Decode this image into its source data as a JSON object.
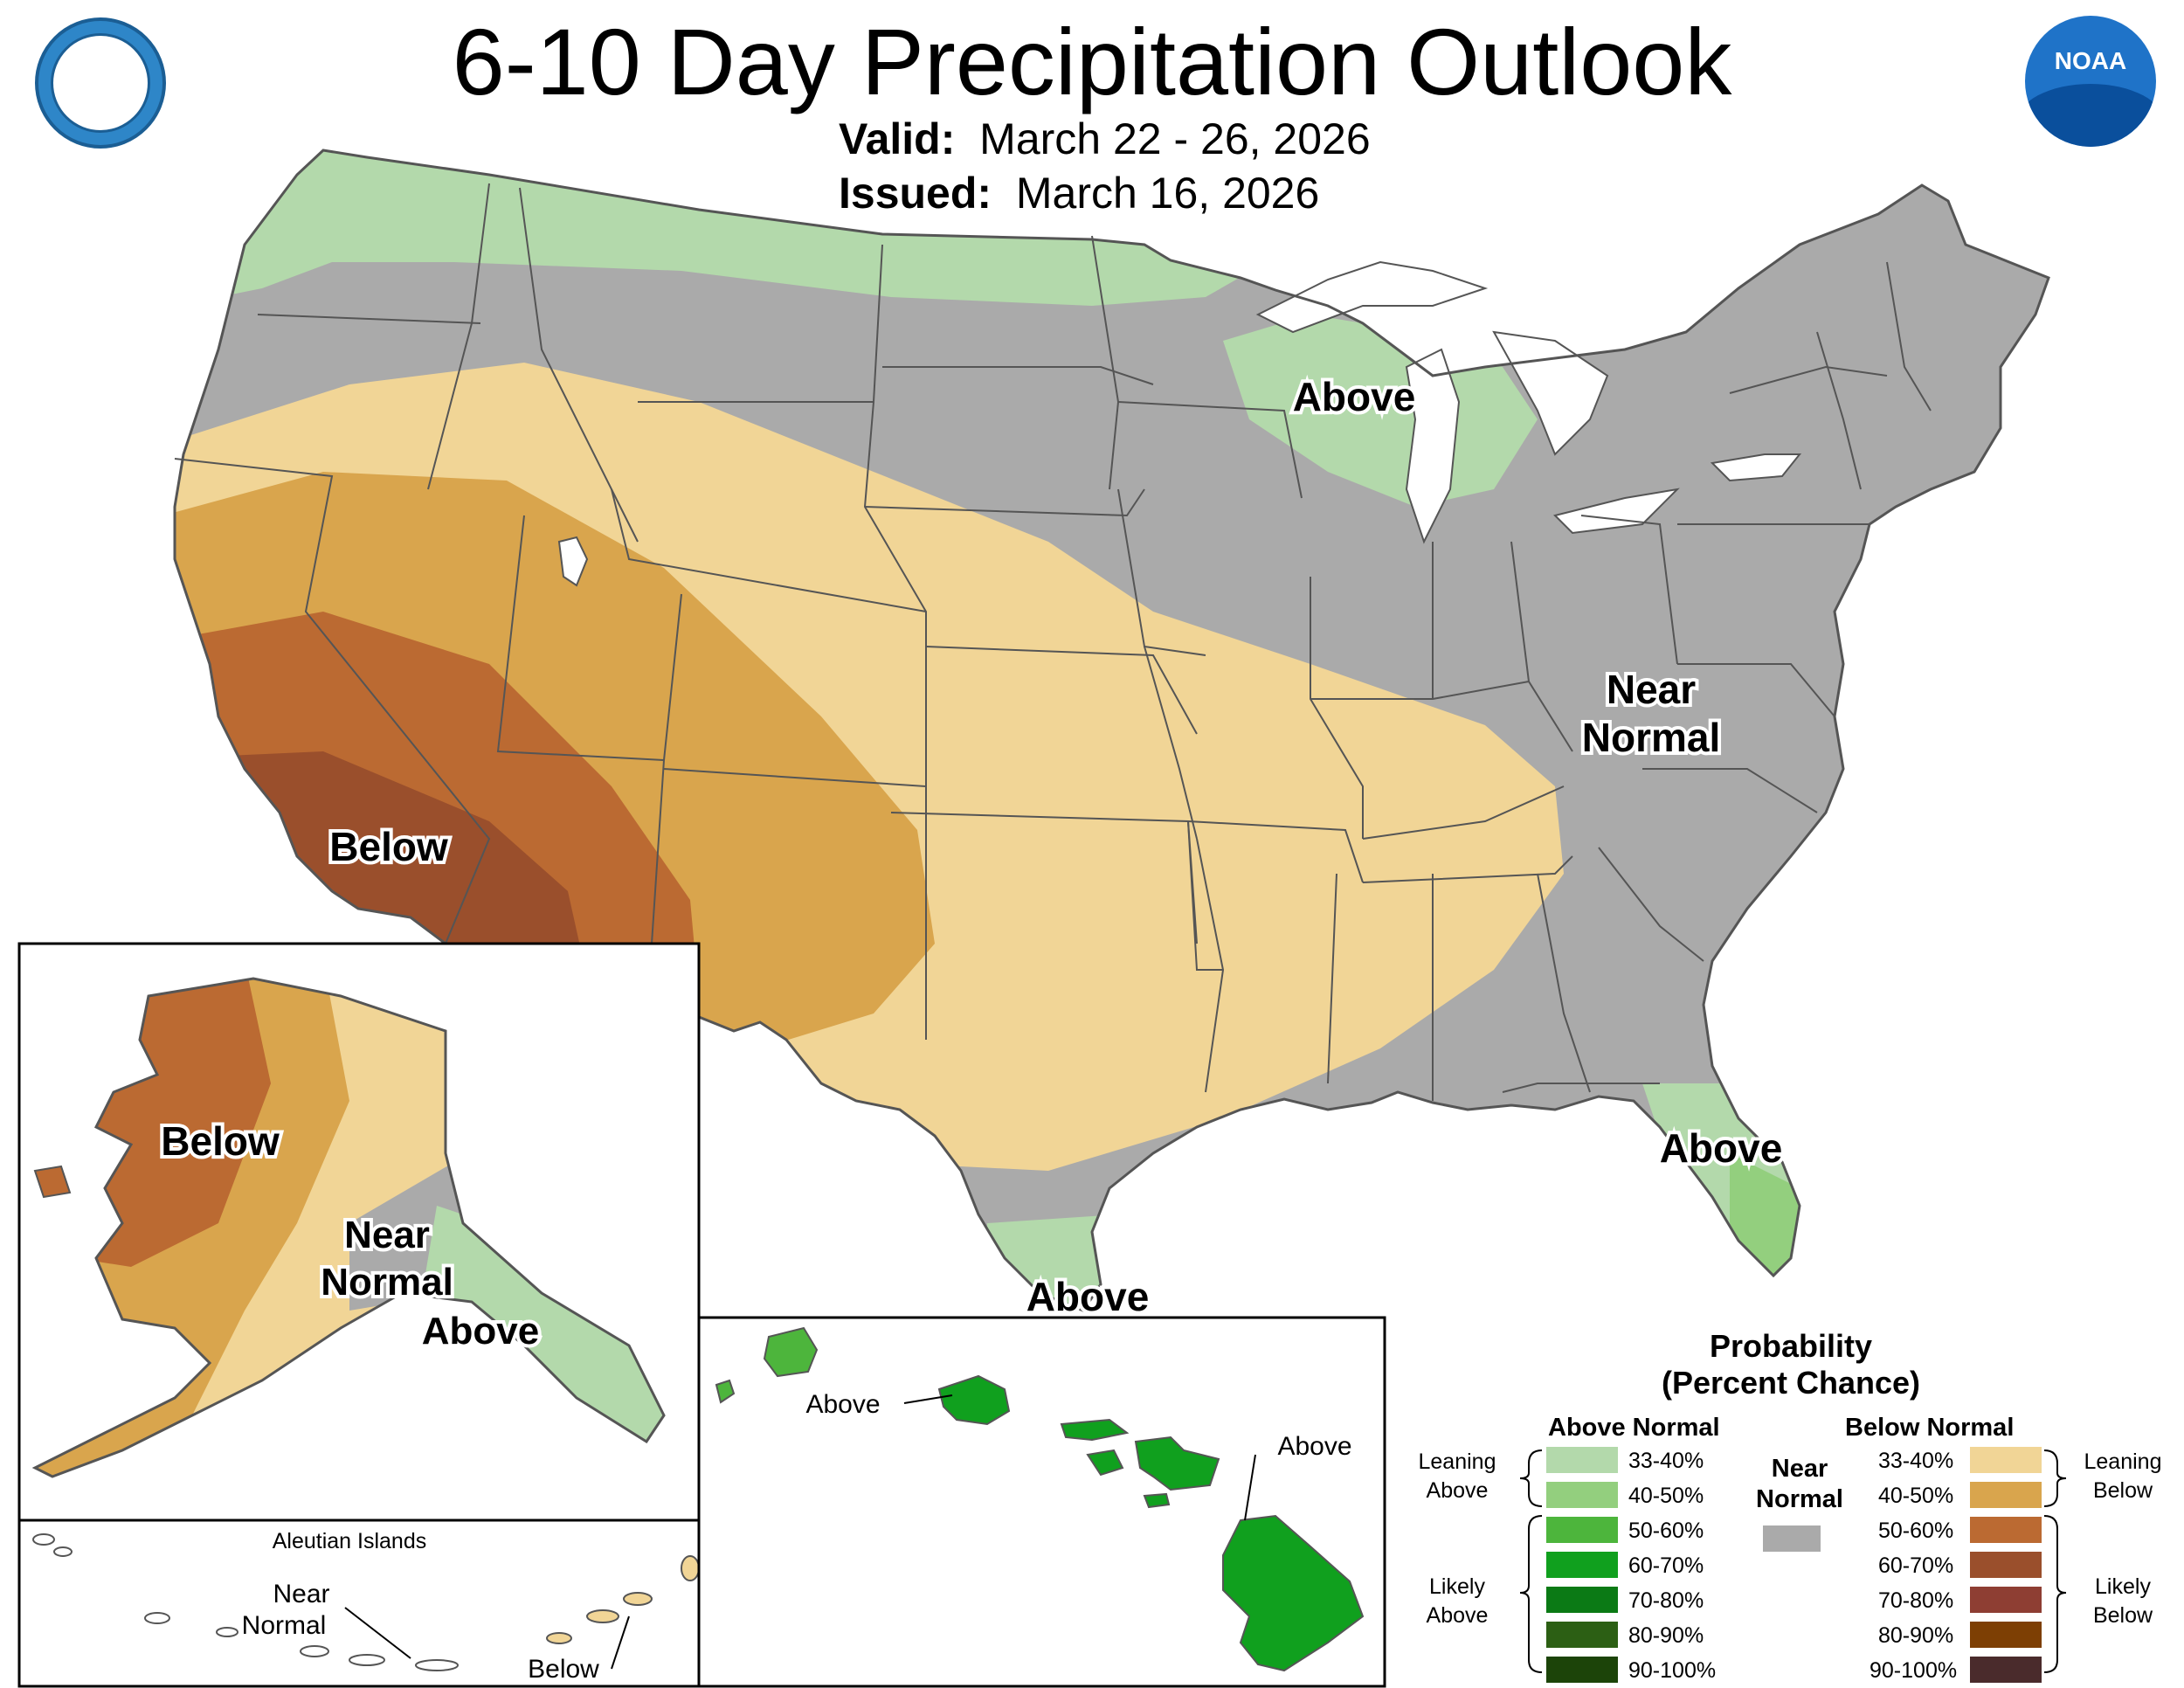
{
  "title": "6-10 Day Precipitation Outlook",
  "valid": {
    "label": "Valid:",
    "value": "March 22 - 26, 2026"
  },
  "issued": {
    "label": "Issued:",
    "value": "March 16, 2026"
  },
  "logos": {
    "left": "department-of-commerce-seal",
    "right": "noaa-logo",
    "noaa_text": "NOAA"
  },
  "colors": {
    "above_33_40": "#b3d9ab",
    "above_40_50": "#93cf7e",
    "above_50_60": "#4db53c",
    "above_60_70": "#10a01e",
    "above_70_80": "#0b7a15",
    "above_80_90": "#2c5f14",
    "above_90_100": "#1c4409",
    "near": "#aaaaaa",
    "below_33_40": "#f1d596",
    "below_40_50": "#d9a54d",
    "below_50_60": "#bb6a32",
    "below_60_70": "#9a4f2c",
    "below_70_80": "#8e3e33",
    "below_80_90": "#7d3f04",
    "below_90_100": "#4a2b2c"
  },
  "map_labels": {
    "conus_above_great_lakes": "Above",
    "conus_near_normal_line1": "Near",
    "conus_near_normal_line2": "Normal",
    "conus_below": "Below",
    "conus_above_florida": "Above",
    "conus_above_texas": "Above",
    "alaska_below": "Below",
    "alaska_near_line1": "Near",
    "alaska_near_line2": "Normal",
    "alaska_above": "Above",
    "aleutian_title": "Aleutian Islands",
    "aleutian_near_line1": "Near",
    "aleutian_near_line2": "Normal",
    "aleutian_below": "Below",
    "hawaii_above_west": "Above",
    "hawaii_above_east": "Above"
  },
  "legend": {
    "title_line1": "Probability",
    "title_line2": "(Percent Chance)",
    "above_header": "Above Normal",
    "below_header": "Below Normal",
    "near_line1": "Near",
    "near_line2": "Normal",
    "leaning_above_line1": "Leaning",
    "leaning_above_line2": "Above",
    "likely_above_line1": "Likely",
    "likely_above_line2": "Above",
    "leaning_below_line1": "Leaning",
    "leaning_below_line2": "Below",
    "likely_below_line1": "Likely",
    "likely_below_line2": "Below",
    "rows": [
      "33-40%",
      "40-50%",
      "50-60%",
      "60-70%",
      "70-80%",
      "80-90%",
      "90-100%"
    ]
  }
}
